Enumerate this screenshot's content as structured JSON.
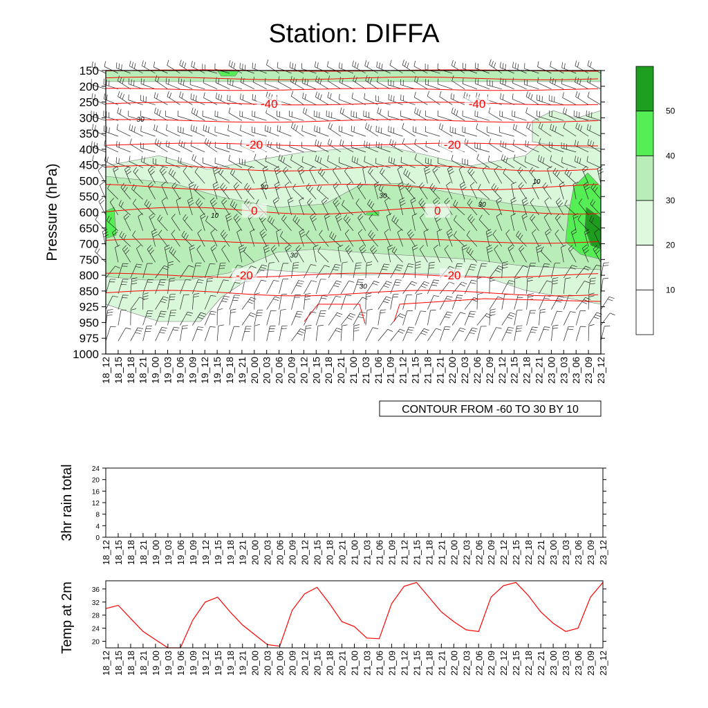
{
  "title": "Station: DIFFA",
  "colors": {
    "axis": "#000000",
    "temp_contour": "#ff0000",
    "humidity_light": "#d9f7d9",
    "humidity_mid": "#b8edb8",
    "humidity_strong": "#55ee55",
    "humidity_max": "#1e9e1e"
  },
  "time_labels": [
    "18_12",
    "18_15",
    "18_18",
    "18_21",
    "19_00",
    "19_03",
    "19_06",
    "19_09",
    "19_12",
    "19_15",
    "19_18",
    "19_21",
    "20_00",
    "20_03",
    "20_06",
    "20_09",
    "20_12",
    "20_15",
    "20_18",
    "20_21",
    "21_00",
    "21_03",
    "21_06",
    "21_09",
    "21_12",
    "21_15",
    "21_18",
    "21_21",
    "22_00",
    "22_03",
    "22_06",
    "22_09",
    "22_12",
    "22_15",
    "22_18",
    "22_21",
    "23_00",
    "23_03",
    "23_06",
    "23_09",
    "23_12"
  ],
  "chart_data": [
    {
      "type": "heatmap",
      "ylabel": "Pressure (hPa)",
      "pressure_levels": [
        "150",
        "200",
        "250",
        "300",
        "350",
        "400",
        "450",
        "500",
        "550",
        "600",
        "650",
        "700",
        "750",
        "800",
        "850",
        "925",
        "950",
        "975",
        "1000"
      ],
      "annotation": "CONTOUR FROM -60 TO 30 BY 10",
      "colorbar": {
        "labels": [
          "10",
          "20",
          "30",
          "40",
          "50"
        ]
      },
      "temperature_contours": [
        {
          "label": "-40",
          "pressure": 255
        },
        {
          "label": "-20",
          "pressure": 385
        },
        {
          "label": "0",
          "pressure": 595
        },
        {
          "label": "-20",
          "pressure": 800
        }
      ],
      "humidity_labels": [
        "10",
        "30"
      ]
    },
    {
      "type": "line",
      "ylabel": "3hr rain total",
      "yticks": [
        "0",
        "4",
        "8",
        "12",
        "16",
        "20",
        "24"
      ],
      "ylim": [
        0,
        24
      ],
      "values": []
    },
    {
      "type": "line",
      "ylabel": "Temp at 2m",
      "yticks": [
        "20",
        "24",
        "28",
        "32",
        "36"
      ],
      "ylim": [
        18,
        38.5
      ],
      "values": [
        30,
        31,
        27,
        23,
        20.5,
        18,
        18,
        26.5,
        32,
        33.5,
        29,
        25,
        22,
        19,
        18.5,
        29.5,
        34.5,
        36.5,
        31.5,
        26,
        24.5,
        21,
        20.8,
        31.5,
        36.8,
        38,
        33.5,
        29,
        26,
        23.5,
        23,
        33.5,
        37,
        38,
        34,
        29,
        25.5,
        23,
        24,
        33.5,
        38
      ]
    }
  ]
}
